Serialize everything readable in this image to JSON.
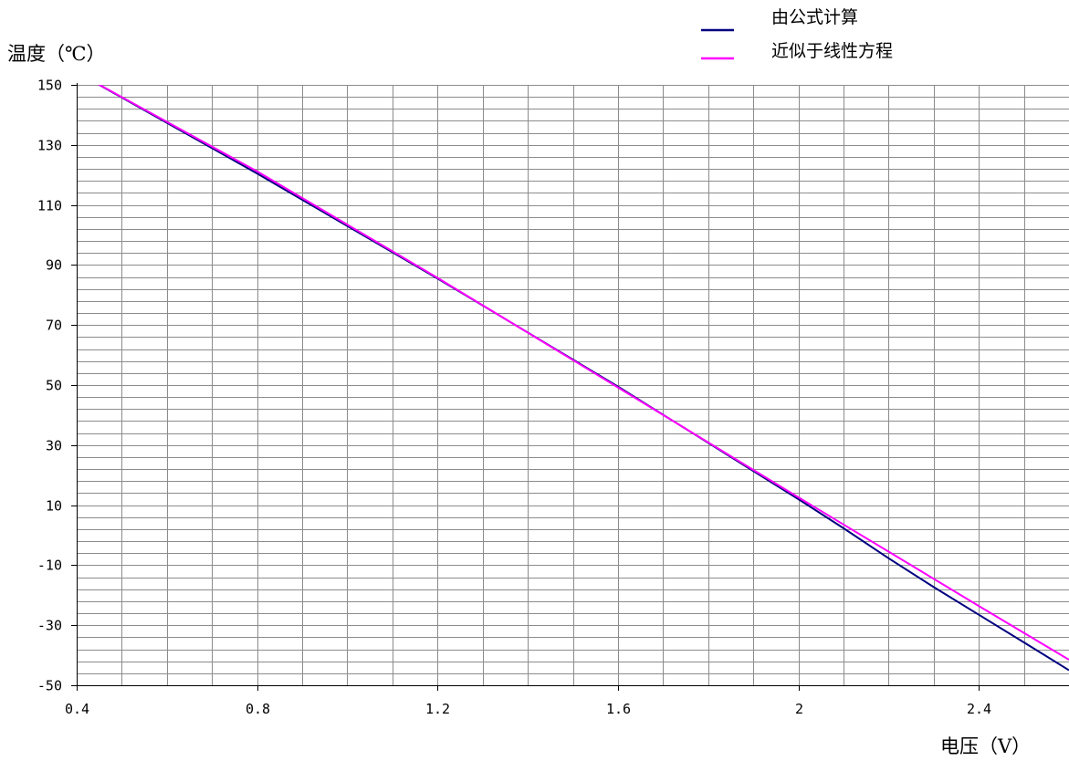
{
  "chart_data": {
    "type": "line",
    "title": "",
    "xlabel": "电压（V）",
    "ylabel": "温度（℃）",
    "xlim": [
      0.4,
      2.6
    ],
    "ylim": [
      -50,
      150
    ],
    "x_ticks": [
      0.4,
      0.8,
      1.2,
      1.6,
      2,
      2.4
    ],
    "x_tick_labels": [
      "0.4",
      "0.8",
      "1.2",
      "1.6",
      "2",
      "2.4"
    ],
    "y_ticks": [
      -50,
      -30,
      -10,
      10,
      30,
      50,
      70,
      90,
      110,
      130,
      150
    ],
    "y_tick_labels": [
      "-50",
      "-30",
      "-10",
      "10",
      "30",
      "50",
      "70",
      "90",
      "110",
      "130",
      "150"
    ],
    "grid": true,
    "legend_position": "top-right",
    "series": [
      {
        "name": "由公式计算",
        "color": "#000080",
        "x": [
          0.45,
          0.8,
          1.2,
          1.6,
          2.0,
          2.1,
          2.2,
          2.3,
          2.4,
          2.5,
          2.6
        ],
        "y": [
          150,
          120.5,
          85.5,
          49.5,
          12.0,
          2.3,
          -7.7,
          -17.3,
          -26.5,
          -35.7,
          -45.0
        ]
      },
      {
        "name": "近似于线性方程",
        "color": "#ff00ff",
        "x": [
          0.4,
          0.8,
          1.2,
          1.6,
          2.0,
          2.4,
          2.6
        ],
        "y": [
          154.2,
          121.2,
          85.7,
          49.2,
          12.6,
          -23.6,
          -41.5
        ]
      }
    ]
  },
  "legend": {
    "items": [
      {
        "label": "由公式计算",
        "color": "#000080"
      },
      {
        "label": "近似于线性方程",
        "color": "#ff00ff"
      }
    ]
  }
}
